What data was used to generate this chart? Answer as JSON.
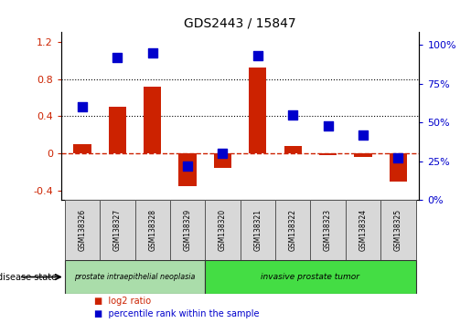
{
  "title": "GDS2443 / 15847",
  "samples": [
    "GSM138326",
    "GSM138327",
    "GSM138328",
    "GSM138329",
    "GSM138320",
    "GSM138321",
    "GSM138322",
    "GSM138323",
    "GSM138324",
    "GSM138325"
  ],
  "log2_ratio": [
    0.1,
    0.5,
    0.72,
    -0.35,
    -0.15,
    0.92,
    0.08,
    -0.02,
    -0.04,
    -0.3
  ],
  "percentile_rank": [
    60,
    92,
    95,
    22,
    30,
    93,
    55,
    48,
    42,
    27
  ],
  "bar_color": "#cc2200",
  "dot_color": "#0000cc",
  "left_ylim": [
    -0.5,
    1.3
  ],
  "right_ylim": [
    0,
    108
  ],
  "left_yticks": [
    -0.4,
    0.0,
    0.4,
    0.8,
    1.2
  ],
  "right_yticks": [
    0,
    25,
    50,
    75,
    100
  ],
  "left_yticklabels": [
    "-0.4",
    "0",
    "0.4",
    "0.8",
    "1.2"
  ],
  "right_yticklabels": [
    "0%",
    "25%",
    "50%",
    "75%",
    "100%"
  ],
  "hlines_dotted": [
    0.4,
    0.8
  ],
  "hline_zero_color": "#cc2200",
  "hline_color": "#000000",
  "group1_label": "prostate intraepithelial neoplasia",
  "group2_label": "invasive prostate tumor",
  "n_group1": 4,
  "n_group2": 6,
  "group1_color": "#aaddaa",
  "group2_color": "#44dd44",
  "disease_state_label": "disease state",
  "legend_log2": "log2 ratio",
  "legend_pct": "percentile rank within the sample",
  "bar_width": 0.5,
  "dot_size": 55
}
